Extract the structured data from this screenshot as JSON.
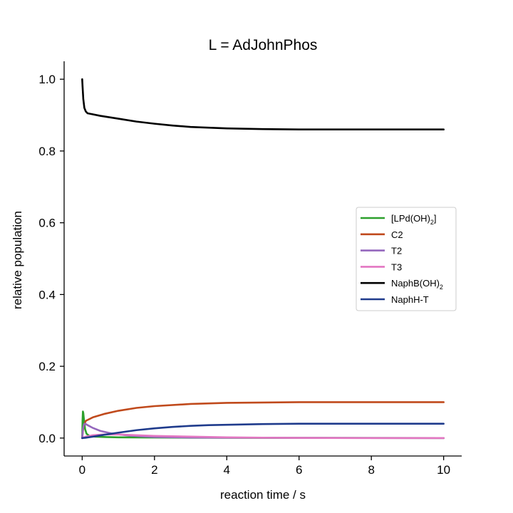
{
  "chart_data": {
    "type": "line",
    "title": "L = AdJohnPhos",
    "xlabel": "reaction time / s",
    "ylabel": "relative population",
    "xlim": [
      -0.5,
      10.5
    ],
    "ylim": [
      -0.05,
      1.05
    ],
    "xticks": [
      0,
      2,
      4,
      6,
      8,
      10
    ],
    "xtick_labels": [
      "0",
      "2",
      "4",
      "6",
      "8",
      "10"
    ],
    "yticks": [
      0.0,
      0.2,
      0.4,
      0.6,
      0.8,
      1.0
    ],
    "ytick_labels": [
      "0.0",
      "0.2",
      "0.4",
      "0.6",
      "0.8",
      "1.0"
    ],
    "grid": false,
    "legend_position": "center-right",
    "series": [
      {
        "name_main": "[LPd(OH)",
        "name_sub": "2",
        "name_tail": "]",
        "color": "#2ca02c",
        "x": [
          0,
          0.01,
          0.02,
          0.03,
          0.05,
          0.08,
          0.12,
          0.2,
          0.35,
          0.6,
          1.0,
          2.0,
          3.0,
          5.0,
          10.0
        ],
        "y": [
          0.0,
          0.05,
          0.074,
          0.07,
          0.05,
          0.025,
          0.012,
          0.006,
          0.004,
          0.003,
          0.002,
          0.0015,
          0.001,
          0.0005,
          0.0
        ]
      },
      {
        "name_main": "C2",
        "name_sub": "",
        "name_tail": "",
        "color": "#c04a1c",
        "x": [
          0,
          0.03,
          0.1,
          0.3,
          0.6,
          1.0,
          1.5,
          2.0,
          3.0,
          4.0,
          5.0,
          6.0,
          7.0,
          8.0,
          9.0,
          10.0
        ],
        "y": [
          0.0,
          0.03,
          0.048,
          0.058,
          0.067,
          0.076,
          0.084,
          0.089,
          0.095,
          0.098,
          0.099,
          0.1,
          0.1,
          0.1,
          0.1,
          0.1
        ]
      },
      {
        "name_main": "T2",
        "name_sub": "",
        "name_tail": "",
        "color": "#9467bd",
        "x": [
          0,
          0.02,
          0.05,
          0.08,
          0.15,
          0.3,
          0.5,
          0.8,
          1.2,
          1.6,
          2.0,
          3.0,
          4.0,
          6.0,
          10.0
        ],
        "y": [
          0.0,
          0.025,
          0.038,
          0.04,
          0.036,
          0.028,
          0.02,
          0.013,
          0.008,
          0.005,
          0.003,
          0.0015,
          0.001,
          0.0005,
          0.0
        ]
      },
      {
        "name_main": "T3",
        "name_sub": "",
        "name_tail": "",
        "color": "#e377c2",
        "x": [
          0,
          0.1,
          0.3,
          0.6,
          1.0,
          1.5,
          2.0,
          2.5,
          3.0,
          4.0,
          5.0,
          6.0,
          8.0,
          10.0
        ],
        "y": [
          0.0,
          0.004,
          0.008,
          0.01,
          0.01,
          0.008,
          0.006,
          0.005,
          0.004,
          0.002,
          0.001,
          0.0005,
          0.0,
          0.0
        ]
      },
      {
        "name_main": "NaphB(OH)",
        "name_sub": "2",
        "name_tail": "",
        "color": "#000000",
        "x": [
          0,
          0.01,
          0.03,
          0.06,
          0.1,
          0.15,
          0.25,
          0.5,
          1.0,
          1.5,
          2.0,
          2.5,
          3.0,
          4.0,
          5.0,
          6.0,
          7.0,
          8.0,
          9.0,
          10.0
        ],
        "y": [
          1.0,
          0.98,
          0.945,
          0.92,
          0.91,
          0.905,
          0.903,
          0.898,
          0.89,
          0.882,
          0.876,
          0.871,
          0.867,
          0.863,
          0.861,
          0.86,
          0.86,
          0.86,
          0.86,
          0.86
        ]
      },
      {
        "name_main": "NaphH-T",
        "name_sub": "",
        "name_tail": "",
        "color": "#1f3b8c",
        "x": [
          0,
          0.1,
          0.3,
          0.6,
          1.0,
          1.5,
          2.0,
          2.5,
          3.0,
          3.5,
          4.0,
          5.0,
          6.0,
          7.0,
          8.0,
          9.0,
          10.0
        ],
        "y": [
          0.0,
          0.001,
          0.004,
          0.009,
          0.015,
          0.022,
          0.027,
          0.031,
          0.034,
          0.036,
          0.037,
          0.039,
          0.04,
          0.04,
          0.04,
          0.04,
          0.04
        ]
      }
    ]
  }
}
